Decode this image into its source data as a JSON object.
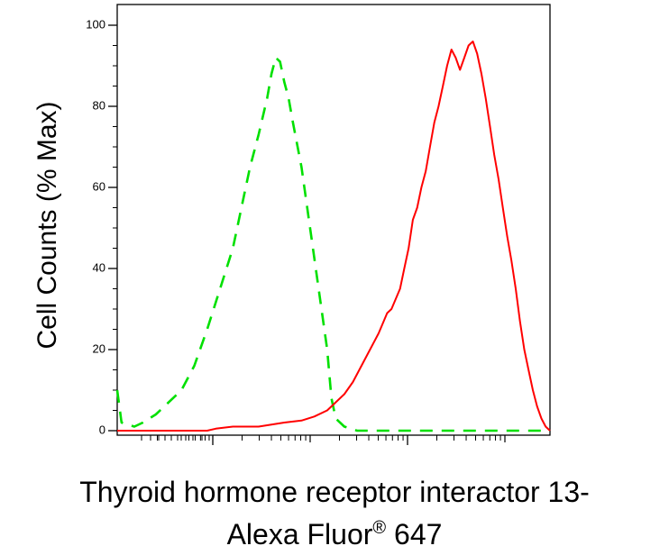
{
  "chart_data": {
    "type": "line",
    "title": "",
    "ylabel": "Cell Counts (% Max)",
    "xlabel_line1": "Thyroid hormone receptor interactor 13-",
    "xlabel_line2": "Alexa Fluor",
    "xlabel_sup": "®",
    "xlabel_line2_end": " 647",
    "ylim": [
      0,
      100
    ],
    "y_ticks": [
      "0",
      "20",
      "40",
      "60",
      "80",
      "100"
    ],
    "x_scale": "log",
    "xlim": [
      -1,
      100
    ],
    "grid": false,
    "legend": "none",
    "series": [
      {
        "color": "#00e000",
        "dash": true,
        "points": [
          [
            -1,
            10
          ],
          [
            0,
            2
          ],
          [
            3,
            1
          ],
          [
            5,
            2
          ],
          [
            8,
            4
          ],
          [
            10,
            6
          ],
          [
            14,
            10
          ],
          [
            17,
            16
          ],
          [
            20,
            25
          ],
          [
            23,
            35
          ],
          [
            26,
            45
          ],
          [
            28,
            55
          ],
          [
            30,
            65
          ],
          [
            32,
            73
          ],
          [
            34,
            82
          ],
          [
            35,
            88
          ],
          [
            36,
            92
          ],
          [
            37,
            91
          ],
          [
            38,
            86
          ],
          [
            39,
            82
          ],
          [
            40,
            76
          ],
          [
            42,
            65
          ],
          [
            44,
            50
          ],
          [
            46,
            35
          ],
          [
            48,
            20
          ],
          [
            49,
            8
          ],
          [
            50,
            3
          ],
          [
            52,
            1
          ],
          [
            55,
            0
          ],
          [
            100,
            0
          ]
        ]
      },
      {
        "color": "#ff0000",
        "dash": false,
        "points": [
          [
            -1,
            0
          ],
          [
            20,
            0
          ],
          [
            22,
            0.5
          ],
          [
            26,
            1
          ],
          [
            30,
            1
          ],
          [
            32,
            1
          ],
          [
            35,
            1.5
          ],
          [
            38,
            2
          ],
          [
            42,
            2.5
          ],
          [
            45,
            3.5
          ],
          [
            48,
            5
          ],
          [
            50,
            7
          ],
          [
            52,
            9
          ],
          [
            54,
            12
          ],
          [
            56,
            16
          ],
          [
            58,
            20
          ],
          [
            60,
            24
          ],
          [
            62,
            29
          ],
          [
            63,
            30
          ],
          [
            65,
            35
          ],
          [
            66,
            40
          ],
          [
            67,
            45
          ],
          [
            68,
            52
          ],
          [
            69,
            55
          ],
          [
            70,
            60
          ],
          [
            71,
            64
          ],
          [
            72,
            70
          ],
          [
            73,
            76
          ],
          [
            74,
            80
          ],
          [
            75,
            85
          ],
          [
            76,
            90
          ],
          [
            77,
            94
          ],
          [
            78,
            92
          ],
          [
            79,
            89
          ],
          [
            80,
            92
          ],
          [
            81,
            95
          ],
          [
            82,
            96
          ],
          [
            83,
            93
          ],
          [
            84,
            88
          ],
          [
            85,
            82
          ],
          [
            86,
            75
          ],
          [
            87,
            68
          ],
          [
            88,
            62
          ],
          [
            89,
            55
          ],
          [
            90,
            48
          ],
          [
            91,
            42
          ],
          [
            92,
            35
          ],
          [
            93,
            27
          ],
          [
            94,
            20
          ],
          [
            95,
            15
          ],
          [
            96,
            10
          ],
          [
            97,
            6
          ],
          [
            98,
            3
          ],
          [
            99,
            1
          ],
          [
            100,
            0
          ]
        ]
      }
    ]
  }
}
